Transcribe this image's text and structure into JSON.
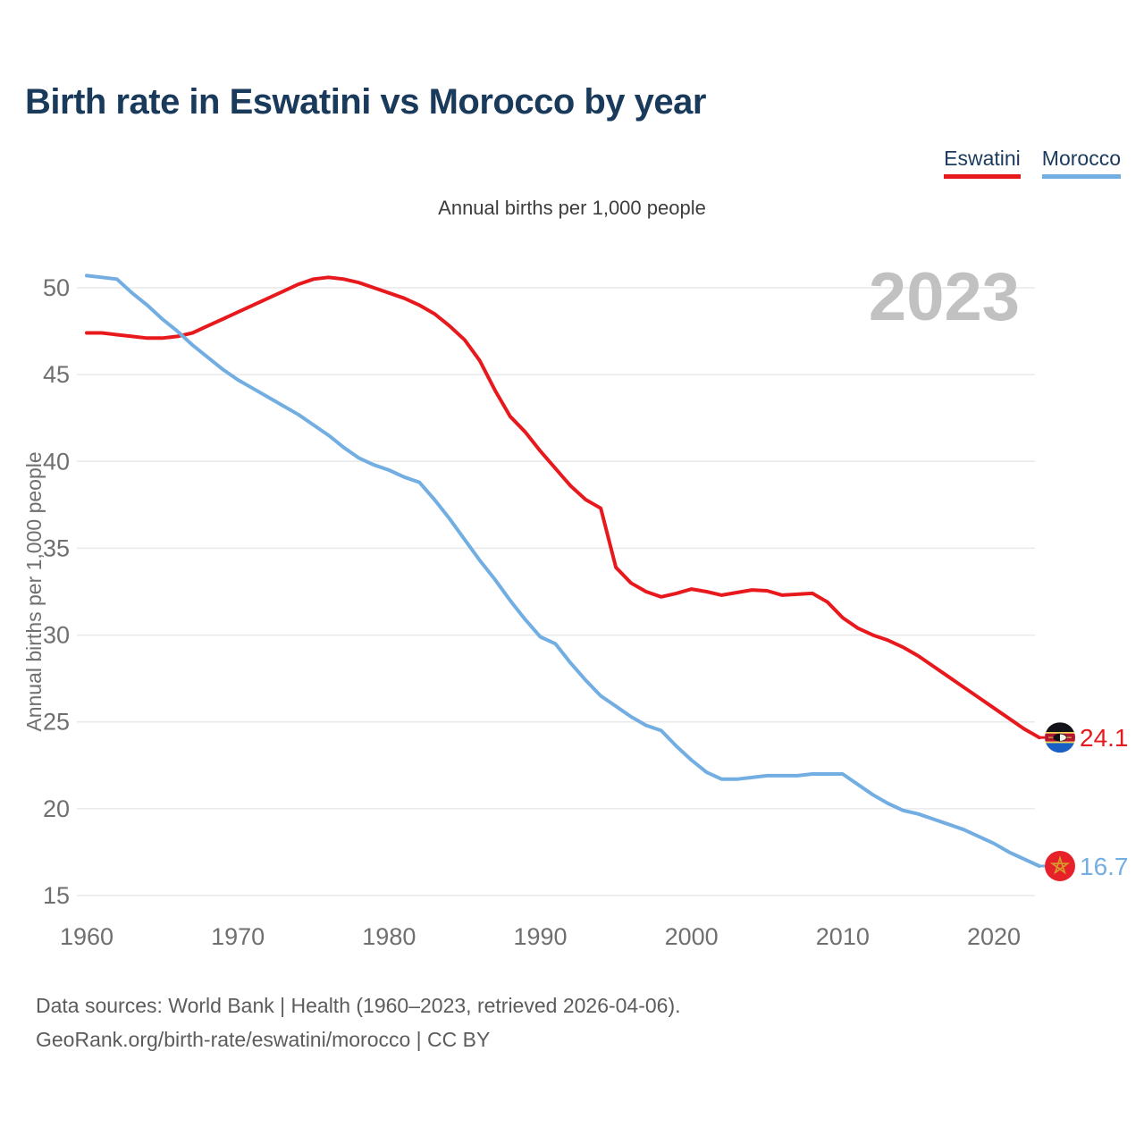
{
  "header": {
    "title": "Birth rate in Eswatini vs Morocco by year",
    "subtitle": "Annual births per 1,000 people"
  },
  "watermark": "2023",
  "footer": {
    "line1": "Data sources: World Bank | Health (1960–2023, retrieved 2026-04-06).",
    "line2": "GeoRank.org/birth-rate/eswatini/morocco | CC BY"
  },
  "colors": {
    "title_navy": "#1a3a5c",
    "grid": "#e9e9e9",
    "tick_text": "#6f6f6f",
    "watermark_gray": "#c1c1c1",
    "footer_gray": "#5c5c5c"
  },
  "chart_data": {
    "type": "line",
    "title": "Birth rate in Eswatini vs Morocco by year",
    "subtitle": "Annual births per 1,000 people",
    "ylabel": "Annual births per 1,000 people",
    "xlabel": "",
    "watermark": "2023",
    "grid": true,
    "legend_position": "top-right",
    "xlim": [
      1960,
      2023
    ],
    "ylim": [
      15,
      50
    ],
    "x_start": 1960,
    "x_ticks": [
      1960,
      1970,
      1980,
      1990,
      2000,
      2010,
      2020
    ],
    "y_ticks": [
      15,
      20,
      25,
      30,
      35,
      40,
      45,
      50
    ],
    "series": [
      {
        "name": "Eswatini",
        "color": "#e8191d",
        "end_label": "24.1",
        "flag": "eswatini",
        "values": [
          47.4,
          47.4,
          47.3,
          47.2,
          47.1,
          47.1,
          47.2,
          47.4,
          47.8,
          48.2,
          48.6,
          49.0,
          49.4,
          49.8,
          50.2,
          50.5,
          50.6,
          50.5,
          50.3,
          50.0,
          49.7,
          49.4,
          49.0,
          48.5,
          47.8,
          47.0,
          45.8,
          44.1,
          42.6,
          41.7,
          40.6,
          39.6,
          38.6,
          37.8,
          37.3,
          33.9,
          33.0,
          32.5,
          32.2,
          32.4,
          32.65,
          32.5,
          32.3,
          32.45,
          32.6,
          32.55,
          32.3,
          32.35,
          32.4,
          31.9,
          31.0,
          30.4,
          30.0,
          29.7,
          29.3,
          28.8,
          28.2,
          27.6,
          27.0,
          26.4,
          25.8,
          25.2,
          24.6,
          24.1
        ]
      },
      {
        "name": "Morocco",
        "color": "#72aee2",
        "end_label": "16.7",
        "flag": "morocco",
        "values": [
          50.7,
          50.6,
          50.5,
          49.7,
          49.0,
          48.2,
          47.5,
          46.7,
          46.0,
          45.3,
          44.7,
          44.2,
          43.7,
          43.2,
          42.7,
          42.1,
          41.5,
          40.8,
          40.2,
          39.8,
          39.5,
          39.1,
          38.8,
          37.8,
          36.7,
          35.5,
          34.3,
          33.2,
          32.0,
          30.9,
          29.9,
          29.5,
          28.4,
          27.4,
          26.5,
          25.9,
          25.3,
          24.8,
          24.5,
          23.6,
          22.8,
          22.1,
          21.7,
          21.7,
          21.8,
          21.9,
          21.9,
          21.9,
          22.0,
          22.0,
          22.0,
          21.4,
          20.8,
          20.3,
          19.9,
          19.7,
          19.4,
          19.1,
          18.8,
          18.4,
          18.0,
          17.5,
          17.1,
          16.7
        ]
      }
    ]
  }
}
